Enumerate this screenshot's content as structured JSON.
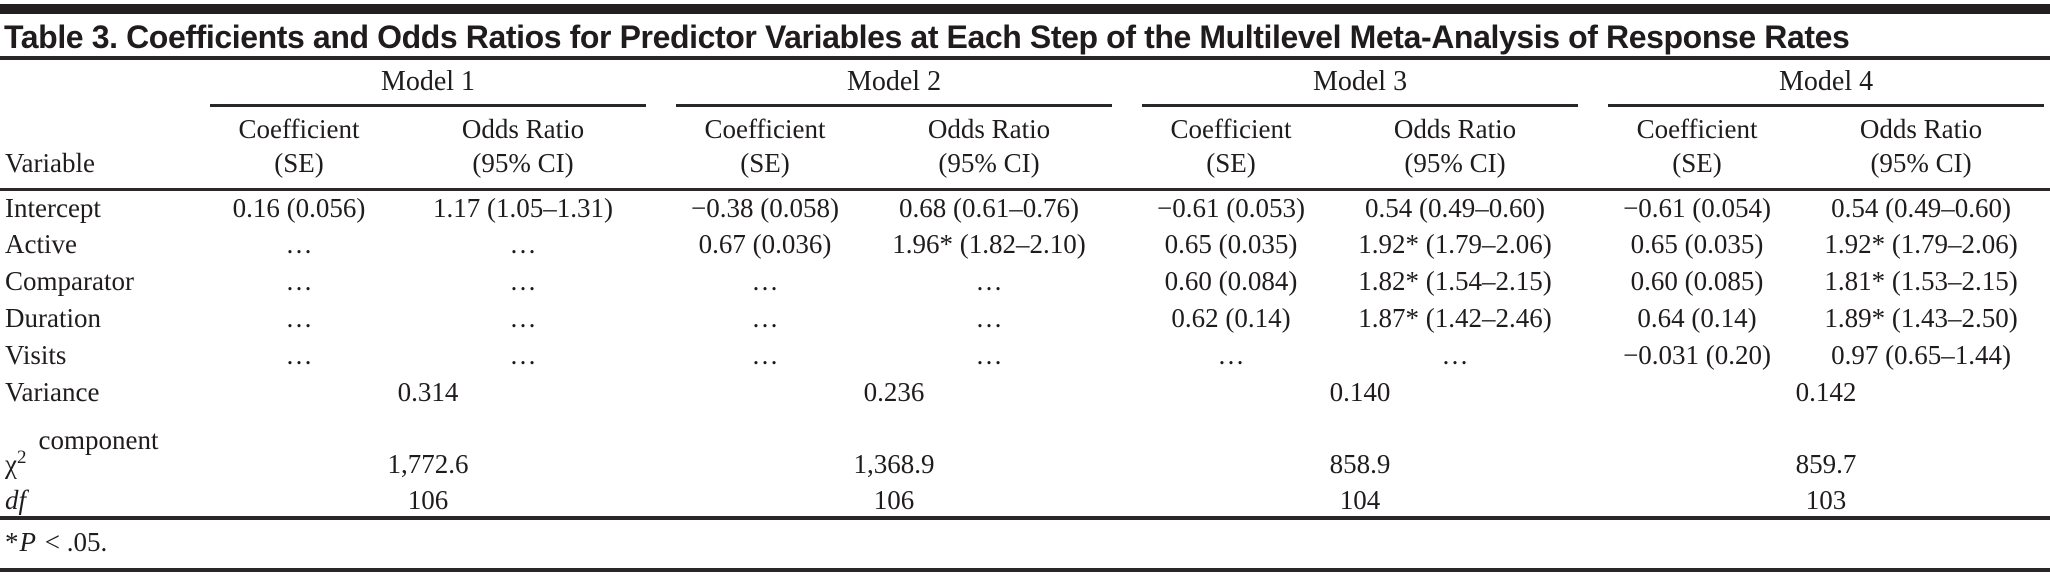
{
  "colors": {
    "bar": "#231f20",
    "rule": "#2b2728",
    "text": "#201c1d"
  },
  "title": {
    "label": "Table 3.",
    "caption": " Coefficients and Odds Ratios for Predictor Variables at Each Step of the Multilevel Meta-Analysis of Response Rates"
  },
  "header": {
    "variable": "Variable",
    "models": [
      "Model 1",
      "Model 2",
      "Model 3",
      "Model 4"
    ],
    "coef_line1": "Coefficient",
    "coef_line2": "(SE)",
    "odds_line1": "Odds Ratio",
    "odds_line2": "(95% CI)"
  },
  "body": {
    "rows": [
      {
        "label": "Intercept",
        "cells": [
          "0.16 (0.056)",
          "1.17 (1.05–1.31)",
          "−0.38 (0.058)",
          "0.68 (0.61–0.76)",
          "−0.61 (0.053)",
          "0.54 (0.49–0.60)",
          "−0.61 (0.054)",
          "0.54 (0.49–0.60)"
        ]
      },
      {
        "label": "Active",
        "cells": [
          "…",
          "…",
          "0.67 (0.036)",
          "1.96* (1.82–2.10)",
          "0.65 (0.035)",
          "1.92* (1.79–2.06)",
          "0.65 (0.035)",
          "1.92* (1.79–2.06)"
        ]
      },
      {
        "label": "Comparator",
        "cells": [
          "…",
          "…",
          "…",
          "…",
          "0.60 (0.084)",
          "1.82* (1.54–2.15)",
          "0.60 (0.085)",
          "1.81* (1.53–2.15)"
        ]
      },
      {
        "label": "Duration",
        "cells": [
          "…",
          "…",
          "…",
          "…",
          "0.62 (0.14)",
          "1.87* (1.42–2.46)",
          "0.64 (0.14)",
          "1.89* (1.43–2.50)"
        ]
      },
      {
        "label": "Visits",
        "cells": [
          "…",
          "…",
          "…",
          "…",
          "…",
          "…",
          "−0.031 (0.20)",
          "0.97 (0.65–1.44)"
        ]
      }
    ],
    "variance": {
      "label": "Variance",
      "values": [
        "0.314",
        "0.236",
        "0.140",
        "0.142"
      ]
    },
    "chi": {
      "symbol": "χ",
      "superscript": "2",
      "word": "component",
      "values": [
        "1,772.6",
        "1,368.9",
        "858.9",
        "859.7"
      ]
    },
    "df": {
      "label": "df",
      "values": [
        "106",
        "106",
        "104",
        "103"
      ]
    }
  },
  "footnote": {
    "marker": "*",
    "p": "P",
    "rest": " < .05."
  }
}
